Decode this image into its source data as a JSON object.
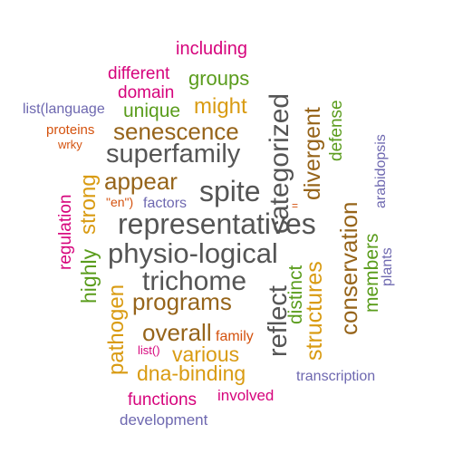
{
  "colors": {
    "magenta": "#d6047c",
    "green": "#5a9c1c",
    "gold": "#d99b12",
    "brown": "#96641a",
    "gray": "#555555",
    "purple": "#6e68b0",
    "orange": "#d4520e"
  },
  "words": {
    "including": "including",
    "different": "different",
    "groups": "groups",
    "domain": "domain",
    "list_language": "list(language",
    "unique": "unique",
    "might": "might",
    "proteins": "proteins",
    "senescence": "senescence",
    "wrky": "wrky",
    "superfamily": "superfamily",
    "appear": "appear",
    "spite": "spite",
    "en": "\"en\")",
    "factors": "factors",
    "equals": "=",
    "representatives": "representatives",
    "physio_logical": "physio-logical",
    "trichome": "trichome",
    "programs": "programs",
    "overall": "overall",
    "family": "family",
    "list_empty": "list()",
    "various": "various",
    "dna_binding": "dna-binding",
    "transcription": "transcription",
    "functions": "functions",
    "involved": "involved",
    "development": "development",
    "categorized": "categorized",
    "divergent": "divergent",
    "defense": "defense",
    "arabidopsis": "arabidopsis",
    "conservation": "conservation",
    "members": "members",
    "plants": "plants",
    "strong": "strong",
    "regulation": "regulation",
    "highly": "highly",
    "pathogen": "pathogen",
    "reflect": "reflect",
    "distinct": "distinct",
    "structures": "structures"
  }
}
